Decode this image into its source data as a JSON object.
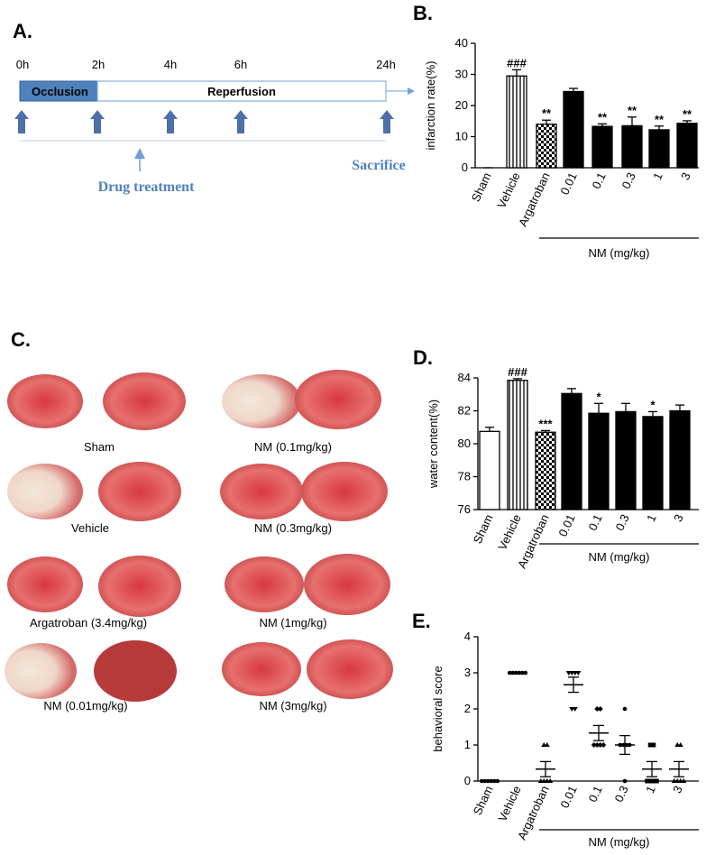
{
  "timeline": {
    "panel": "A.",
    "times": [
      "0h",
      "2h",
      "4h",
      "6h",
      "24h"
    ],
    "phases": [
      "Occlusion",
      "Reperfusion"
    ],
    "drug_label": "Drug treatment",
    "end_label": "Sacrifice"
  },
  "images": {
    "panel": "C.",
    "labels": [
      "Sham",
      "NM (0.1mg/kg)",
      "Vehicle",
      "NM (0.3mg/kg)",
      "Argatroban (3.4mg/kg)",
      "NM (1mg/kg)",
      "NM (0.01mg/kg)",
      "NM (3mg/kg)"
    ]
  },
  "chart_data": [
    {
      "type": "bar",
      "panel": "B.",
      "ylabel": "infarction rate(%)",
      "group_label": "NM (mg/kg)",
      "categories": [
        "Sham",
        "Vehicle",
        "Argatroban",
        "0.01",
        "0.1",
        "0.3",
        "1",
        "3"
      ],
      "values": [
        0,
        29.5,
        14,
        24.5,
        13.3,
        13.5,
        12.2,
        14.3
      ],
      "errors": [
        0,
        2,
        1.3,
        1,
        0.8,
        2.8,
        1.2,
        0.8
      ],
      "annotations": [
        null,
        "###",
        "**",
        null,
        "**",
        "**",
        "**",
        "**"
      ],
      "styles": [
        "white",
        "striped",
        "checkered",
        "black",
        "black",
        "black",
        "black",
        "black"
      ],
      "ylim": [
        0,
        40
      ],
      "yticks": [
        0,
        10,
        20,
        30,
        40
      ]
    },
    {
      "type": "bar",
      "panel": "D.",
      "ylabel": "water content(%)",
      "group_label": "NM (mg/kg)",
      "categories": [
        "Sham",
        "Vehicle",
        "Argatroban",
        "0.01",
        "0.1",
        "0.3",
        "1",
        "3"
      ],
      "values": [
        80.75,
        83.85,
        80.7,
        83.05,
        81.85,
        81.95,
        81.65,
        82.0
      ],
      "errors": [
        0.25,
        0.1,
        0.1,
        0.3,
        0.6,
        0.5,
        0.3,
        0.35
      ],
      "annotations": [
        null,
        "###",
        "***",
        null,
        "*",
        null,
        "*",
        null
      ],
      "styles": [
        "white",
        "striped",
        "checkered",
        "black",
        "black",
        "black",
        "black",
        "black"
      ],
      "ylim": [
        76,
        84
      ],
      "yticks": [
        76,
        78,
        80,
        82,
        84
      ]
    },
    {
      "type": "scatter",
      "panel": "E.",
      "ylabel": "behavioral score",
      "group_label": "NM (mg/kg)",
      "categories": [
        "Sham",
        "Vehicle",
        "Argatroban",
        "0.01",
        "0.1",
        "0.3",
        "1",
        "3"
      ],
      "points": [
        [
          0,
          0,
          0,
          0,
          0,
          0
        ],
        [
          3,
          3,
          3,
          3,
          3,
          3
        ],
        [
          1,
          1,
          0,
          0,
          0,
          0
        ],
        [
          3,
          3,
          3,
          3,
          2,
          2
        ],
        [
          2,
          2,
          1,
          1,
          1,
          1
        ],
        [
          2,
          1,
          1,
          1,
          1,
          0
        ],
        [
          1,
          1,
          0,
          0,
          0,
          0
        ],
        [
          1,
          1,
          0,
          0,
          0,
          0
        ]
      ],
      "means": [
        0,
        3,
        0.33,
        2.67,
        1.33,
        1.0,
        0.33,
        0.33
      ],
      "errors": [
        0,
        0,
        0.21,
        0.21,
        0.21,
        0.26,
        0.21,
        0.21
      ],
      "markers": [
        "circle",
        "circle",
        "triangle",
        "triangle-down",
        "diamond",
        "circle",
        "square",
        "triangle"
      ],
      "ylim": [
        0,
        4
      ],
      "yticks": [
        0,
        1,
        2,
        3,
        4
      ]
    }
  ]
}
